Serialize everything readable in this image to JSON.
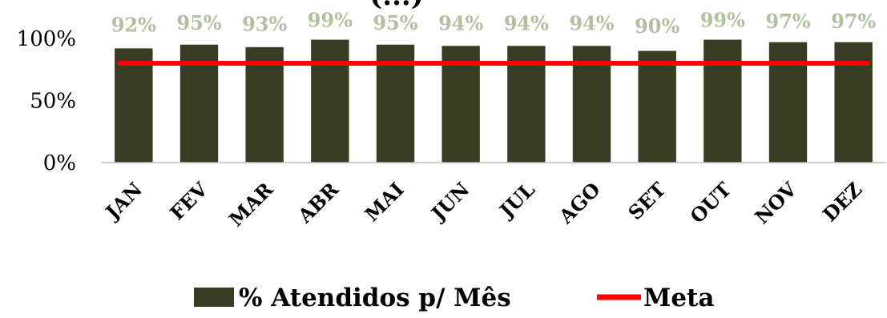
{
  "chart_data": {
    "type": "bar",
    "title_fragment": "(...)",
    "categories": [
      "JAN",
      "FEV",
      "MAR",
      "ABR",
      "MAI",
      "JUN",
      "JUL",
      "AGO",
      "SET",
      "OUT",
      "NOV",
      "DEZ"
    ],
    "series": [
      {
        "name": "% Atendidos p/ Mês",
        "type": "bar",
        "color": "#373c23",
        "values": [
          92,
          95,
          93,
          99,
          95,
          94,
          94,
          94,
          90,
          99,
          97,
          97
        ],
        "labels": [
          "92%",
          "95%",
          "93%",
          "99%",
          "95%",
          "94%",
          "94%",
          "94%",
          "90%",
          "99%",
          "97%",
          "97%"
        ]
      },
      {
        "name": "Meta",
        "type": "line",
        "color": "#ff0000",
        "values": [
          80,
          80,
          80,
          80,
          80,
          80,
          80,
          80,
          80,
          80,
          80,
          80
        ]
      }
    ],
    "ylim": [
      0,
      100
    ],
    "yticks": [
      0,
      50,
      100
    ],
    "ytick_labels": [
      "0%",
      "50%",
      "100%"
    ],
    "label_color": "#b4bf9f",
    "legend_position": "bottom",
    "grid": false
  }
}
